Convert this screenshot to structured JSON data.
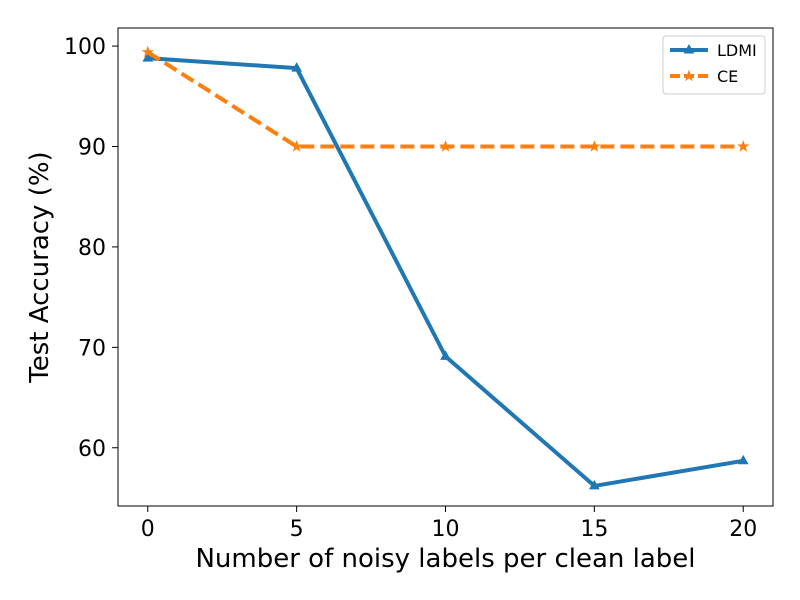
{
  "chart_data": {
    "type": "line",
    "title": "",
    "xlabel": "Number of noisy labels per clean label",
    "ylabel": "Test Accuracy (%)",
    "x": [
      0,
      5,
      10,
      15,
      20
    ],
    "xticks": [
      0,
      5,
      10,
      15,
      20
    ],
    "yticks": [
      60,
      70,
      80,
      90,
      100
    ],
    "xlim": [
      -1,
      21
    ],
    "ylim": [
      54.2,
      101.8
    ],
    "grid": false,
    "legend_position": "top-right",
    "series": [
      {
        "name": "LDMI",
        "values": [
          98.8,
          97.8,
          69.1,
          56.2,
          58.7
        ],
        "color": "#1f77b4",
        "line_style": "solid",
        "marker": "triangle"
      },
      {
        "name": "CE",
        "values": [
          99.4,
          90.0,
          90.0,
          90.0,
          90.0
        ],
        "color": "#ff7f0e",
        "line_style": "dashed",
        "marker": "star"
      }
    ]
  }
}
